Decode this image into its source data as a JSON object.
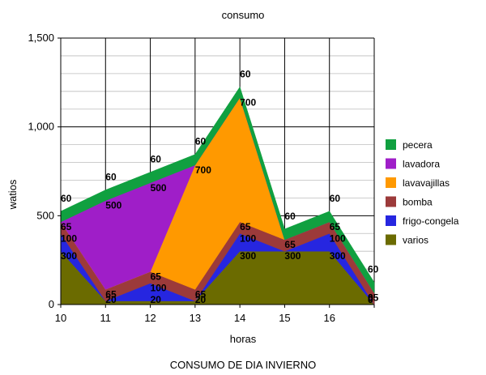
{
  "chart_data": {
    "type": "area",
    "stacked": true,
    "title": "consumo",
    "subtitle": "CONSUMO DE DIA  INVIERNO",
    "xlabel": "horas",
    "ylabel": "watios",
    "x": [
      "10",
      "11",
      "12",
      "13",
      "14",
      "15",
      "16",
      "17"
    ],
    "x_tick_labels": [
      "10",
      "11",
      "12",
      "13",
      "14",
      "15",
      "16",
      ""
    ],
    "ylim": [
      0,
      1500
    ],
    "y_ticks": [
      0,
      500,
      1000,
      1500
    ],
    "y_tick_labels": [
      "0",
      "500",
      "1,000",
      "1,500"
    ],
    "grid": "horizontal",
    "legend_position": "right",
    "series": [
      {
        "name": "varios",
        "color": "#6b6b00",
        "values": [
          300,
          20,
          20,
          20,
          300,
          300,
          300,
          0
        ]
      },
      {
        "name": "frigo-congela",
        "color": "#2626e0",
        "values": [
          100,
          0,
          100,
          0,
          100,
          0,
          100,
          0
        ]
      },
      {
        "name": "bomba",
        "color": "#9c3a3a",
        "values": [
          65,
          65,
          65,
          65,
          65,
          65,
          65,
          65
        ]
      },
      {
        "name": "lavavajillas",
        "color": "#ff9900",
        "values": [
          0,
          0,
          0,
          700,
          700,
          0,
          0,
          0
        ]
      },
      {
        "name": "lavadora",
        "color": "#9f1ec8",
        "values": [
          0,
          500,
          500,
          0,
          0,
          0,
          0,
          0
        ]
      },
      {
        "name": "pecera",
        "color": "#10a040",
        "values": [
          60,
          60,
          60,
          60,
          60,
          60,
          60,
          60
        ]
      }
    ],
    "legend_order": [
      "pecera",
      "lavadora",
      "lavavajillas",
      "bomba",
      "frigo-congela",
      "varios"
    ]
  }
}
